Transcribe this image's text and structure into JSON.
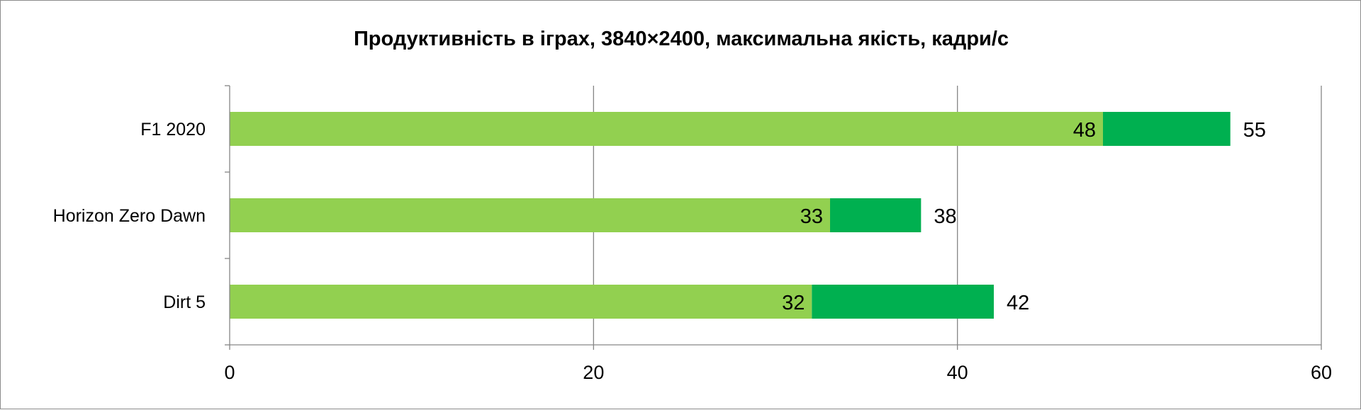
{
  "chart_data": {
    "type": "bar",
    "orientation": "horizontal",
    "stacked": true,
    "title": "Продуктивність в іграх, 3840×2400, максимальна якість, кадри/с",
    "categories": [
      "F1 2020",
      "Horizon Zero Dawn",
      "Dirt 5"
    ],
    "series": [
      {
        "color": "#92d050",
        "values": [
          48,
          33,
          32
        ],
        "labels": [
          "48",
          "33",
          "32"
        ]
      },
      {
        "color": "#00b050",
        "values": [
          7,
          5,
          10
        ],
        "totals": [
          "55",
          "38",
          "42"
        ]
      }
    ],
    "xlim": [
      0,
      60
    ],
    "xticks": [
      "0",
      "20",
      "40",
      "60"
    ],
    "grid": true,
    "legend": "none",
    "colors": {
      "axis": "#868686",
      "grid": "#868686",
      "border": "#8c8c8c"
    }
  }
}
